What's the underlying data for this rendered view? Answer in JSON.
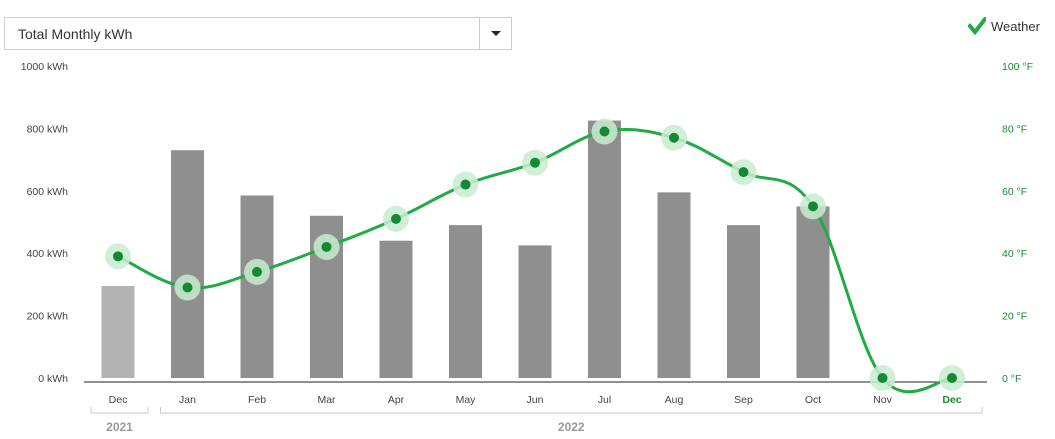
{
  "controls": {
    "metric_select": {
      "value": "Total Monthly kWh"
    },
    "weather_toggle": {
      "label": "Weather",
      "checked": true
    }
  },
  "colors": {
    "bar": "#8f8f8f",
    "bar_first": "#b3b3b3",
    "line": "#22aa44",
    "marker": "#138a32",
    "marker_halo": "#c9ecd0",
    "right_axis": "#1a8a33",
    "left_axis": "#444444",
    "selected_label": "#1a8a33"
  },
  "chart_data": {
    "type": "bar",
    "categories": [
      "Dec",
      "Jan",
      "Feb",
      "Mar",
      "Apr",
      "May",
      "Jun",
      "Jul",
      "Aug",
      "Sep",
      "Oct",
      "Nov",
      "Dec"
    ],
    "year_groups": [
      {
        "label": "2021",
        "start": 0,
        "end": 0
      },
      {
        "label": "2022",
        "start": 1,
        "end": 12
      }
    ],
    "selected_index": 12,
    "series": [
      {
        "type": "bar",
        "axis": "left",
        "values": [
          295,
          730,
          585,
          520,
          440,
          490,
          425,
          825,
          595,
          490,
          550,
          0,
          0
        ]
      },
      {
        "type": "line",
        "axis": "right",
        "smooth": true,
        "values": [
          39,
          29,
          34,
          42,
          51,
          62,
          69,
          79,
          77,
          66,
          55,
          0,
          0
        ]
      }
    ],
    "y_left": {
      "range": [
        0,
        1000
      ],
      "ticks": [
        "0 kWh",
        "200 kWh",
        "400 kWh",
        "600 kWh",
        "800 kWh",
        "1000 kWh"
      ]
    },
    "y_right": {
      "range": [
        0,
        100
      ],
      "ticks": [
        "0 °F",
        "20 °F",
        "40 °F",
        "60 °F",
        "80 °F",
        "100 °F"
      ]
    },
    "grid": false
  }
}
